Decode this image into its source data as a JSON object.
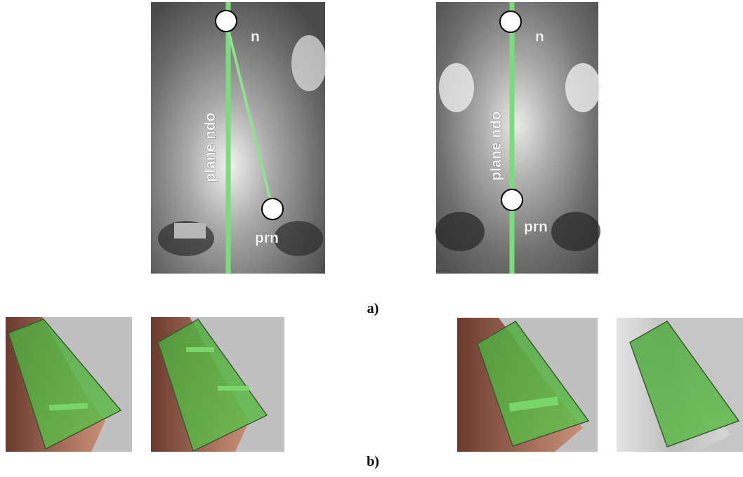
{
  "panel_a": {
    "caption": "a)",
    "views": [
      {
        "n": "n",
        "plane": "plane ndo",
        "prn": "prn"
      },
      {
        "n": "n",
        "plane": "plane ndo",
        "prn": "prn"
      }
    ]
  },
  "panel_b": {
    "caption": "b)"
  }
}
